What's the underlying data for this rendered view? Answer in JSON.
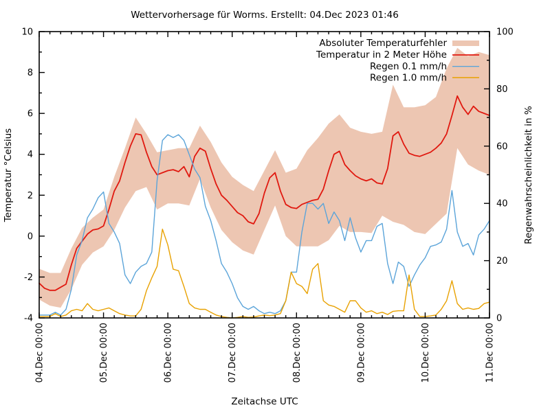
{
  "title": "Wettervorhersage für Worms. Erstellt: 04.Dec 2023 01:46",
  "chart_data": {
    "type": "line",
    "title": "Wettervorhersage für Worms. Erstellt: 04.Dec 2023 01:46",
    "xlabel": "Zeitachse UTC",
    "ylabel_left": "Temperatur °Celsius",
    "ylabel_right": "Regenwahrscheinlichkeit in %",
    "x_range_hours": [
      0,
      168
    ],
    "x_major_tick_hours": 24,
    "x_minor_tick_hours": 4,
    "ylim_left": [
      -4,
      10
    ],
    "ylim_right": [
      0,
      100
    ],
    "grid": false,
    "legend_position": "top-right-inside",
    "x_ticklabels": [
      "04.Dec 00:00",
      "05.Dec 00:00",
      "06.Dec 00:00",
      "07.Dec 00:00",
      "08.Dec 00:00",
      "09.Dec 00:00",
      "10.Dec 00:00",
      "11.Dec 00:00"
    ],
    "y_ticks_left": [
      -4,
      -2,
      0,
      2,
      4,
      6,
      8,
      10
    ],
    "y_ticks_right": [
      0,
      20,
      40,
      60,
      80,
      100
    ],
    "sample_step_hours": 2,
    "band_step_hours": 4,
    "series": [
      {
        "name": "Absoluter Temperaturfehler",
        "type": "band",
        "axis": "left",
        "color": "#edc6b2",
        "upper": [
          -1.6,
          -1.8,
          -1.8,
          -0.6,
          0.4,
          0.9,
          1.3,
          2.9,
          4.3,
          5.8,
          5.0,
          4.1,
          4.2,
          4.3,
          4.3,
          5.4,
          4.6,
          3.6,
          2.9,
          2.5,
          2.2,
          3.2,
          4.2,
          3.1,
          3.3,
          4.2,
          4.8,
          5.5,
          5.95,
          5.3,
          5.1,
          5.0,
          5.1,
          7.4,
          6.3,
          6.3,
          6.4,
          6.8,
          8.2,
          9.2,
          8.8,
          9.0,
          8.85
        ],
        "lower": [
          -3.1,
          -3.4,
          -3.5,
          -2.6,
          -1.4,
          -0.8,
          -0.5,
          0.3,
          1.4,
          2.2,
          2.4,
          1.3,
          1.6,
          1.6,
          1.5,
          2.8,
          1.4,
          0.3,
          -0.3,
          -0.7,
          -0.9,
          0.3,
          1.5,
          0.0,
          -0.5,
          -0.5,
          -0.5,
          -0.2,
          0.5,
          0.2,
          0.2,
          0.15,
          1.0,
          0.7,
          0.55,
          0.2,
          0.1,
          0.6,
          1.1,
          4.3,
          3.5,
          3.2,
          3.0
        ]
      },
      {
        "name": "Temperatur in 2 Meter Höhe",
        "type": "line",
        "axis": "left",
        "color": "#e0180f",
        "values": [
          -2.3,
          -2.55,
          -2.65,
          -2.65,
          -2.5,
          -2.35,
          -1.4,
          -0.6,
          -0.25,
          0.1,
          0.3,
          0.35,
          0.5,
          1.3,
          2.2,
          2.7,
          3.6,
          4.4,
          5.0,
          4.95,
          4.1,
          3.4,
          3.0,
          3.1,
          3.2,
          3.25,
          3.15,
          3.4,
          2.9,
          3.9,
          4.3,
          4.15,
          3.3,
          2.55,
          2.0,
          1.75,
          1.45,
          1.15,
          1.0,
          0.7,
          0.6,
          1.1,
          2.1,
          2.85,
          3.1,
          2.2,
          1.55,
          1.4,
          1.35,
          1.55,
          1.65,
          1.75,
          1.8,
          2.3,
          3.2,
          4.0,
          4.15,
          3.5,
          3.2,
          2.95,
          2.8,
          2.7,
          2.8,
          2.6,
          2.55,
          3.3,
          4.9,
          5.1,
          4.5,
          4.05,
          3.95,
          3.9,
          4.0,
          4.1,
          4.3,
          4.55,
          5.0,
          5.9,
          6.85,
          6.3,
          5.95,
          6.35,
          6.1,
          6.0,
          5.9
        ]
      },
      {
        "name": "Regen 0.1 mm/h",
        "type": "line",
        "axis": "right",
        "color": "#5ba4d9",
        "values": [
          1,
          1,
          1,
          2,
          1,
          3,
          10,
          22,
          27,
          35,
          38,
          42,
          44,
          33,
          30,
          26,
          15,
          12,
          16,
          18,
          19,
          23,
          48,
          62,
          64,
          63,
          64,
          62,
          57,
          52,
          49,
          39,
          34,
          27,
          19,
          16,
          12,
          7,
          4,
          3,
          4,
          2.5,
          1.5,
          2,
          1.5,
          2.5,
          6,
          16,
          16,
          30,
          40,
          40,
          38,
          40,
          33,
          37,
          34,
          27,
          35,
          28,
          23,
          27,
          27,
          32,
          33,
          19,
          12,
          19.5,
          18,
          11,
          15,
          18.5,
          21,
          25,
          25.5,
          26.5,
          31,
          44.5,
          30,
          25,
          26,
          22,
          29,
          31,
          34
        ]
      },
      {
        "name": "Regen 1.0 mm/h",
        "type": "line",
        "axis": "right",
        "color": "#e8a100",
        "values": [
          0.5,
          0.5,
          0.5,
          1.5,
          0.5,
          1,
          2.5,
          3,
          2.5,
          5,
          3,
          2.5,
          3,
          3.5,
          2.5,
          1.5,
          1,
          0.7,
          0.7,
          3,
          9.5,
          14,
          18,
          31,
          25.5,
          17,
          16.5,
          11,
          5,
          3.5,
          3,
          3,
          2,
          1,
          0.5,
          0.2,
          0,
          0.2,
          0.5,
          0.2,
          0.3,
          0.7,
          1,
          0.8,
          1,
          1.5,
          6,
          16,
          12,
          11,
          8.5,
          17,
          19,
          6,
          4.5,
          4,
          3,
          2,
          6,
          6,
          3.5,
          2,
          2.5,
          1.5,
          2,
          1.2,
          2.3,
          2.5,
          2.5,
          15,
          3,
          0.5,
          0.5,
          0.7,
          1,
          3,
          6,
          13,
          5,
          3,
          3.5,
          3,
          3.3,
          5,
          5.5
        ]
      }
    ]
  },
  "legend": {
    "items": [
      {
        "label": "Absoluter Temperaturfehler"
      },
      {
        "label": "Temperatur in 2 Meter Höhe"
      },
      {
        "label": "Regen 0.1 mm/h"
      },
      {
        "label": "Regen 1.0 mm/h"
      }
    ]
  },
  "colors": {
    "band": "#edc6b2",
    "temperature": "#e0180f",
    "rain01": "#5ba4d9",
    "rain10": "#e8a100",
    "axis": "#000000",
    "background": "#ffffff"
  }
}
